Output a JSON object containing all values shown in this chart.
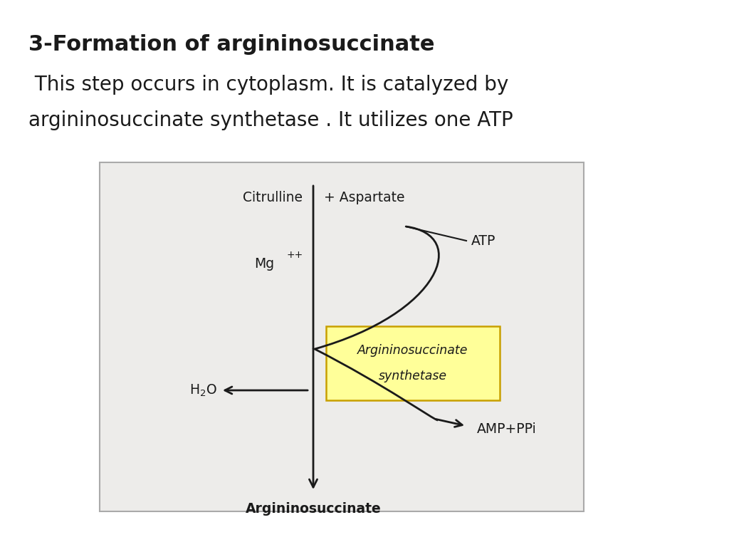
{
  "title_bold": "3-Formation of argininosuccinate",
  "subtitle_line1": " This step occurs in cytoplasm. It is catalyzed by",
  "subtitle_line2": "argininosuccinate synthetase . It utilizes one ATP",
  "bg_color": "#ffffff",
  "diagram_bg": "#edecea",
  "box_color": "#ffff99",
  "box_edge_color": "#c8a000",
  "text_color": "#1a1a1a",
  "arrow_color": "#1a1a1a",
  "title_fontsize": 22,
  "subtitle_fontsize": 20,
  "diagram_label_fontsize": 13.5,
  "labels": {
    "citrulline": "Citrulline",
    "aspartate": "+ Aspartate",
    "mg": "Mg",
    "mg_sup": "++",
    "atp": "ATP",
    "amp": "AMP+PPi",
    "product": "Argininosuccinate",
    "enzyme_line1": "Argininosuccinate",
    "enzyme_line2": "synthetase"
  }
}
